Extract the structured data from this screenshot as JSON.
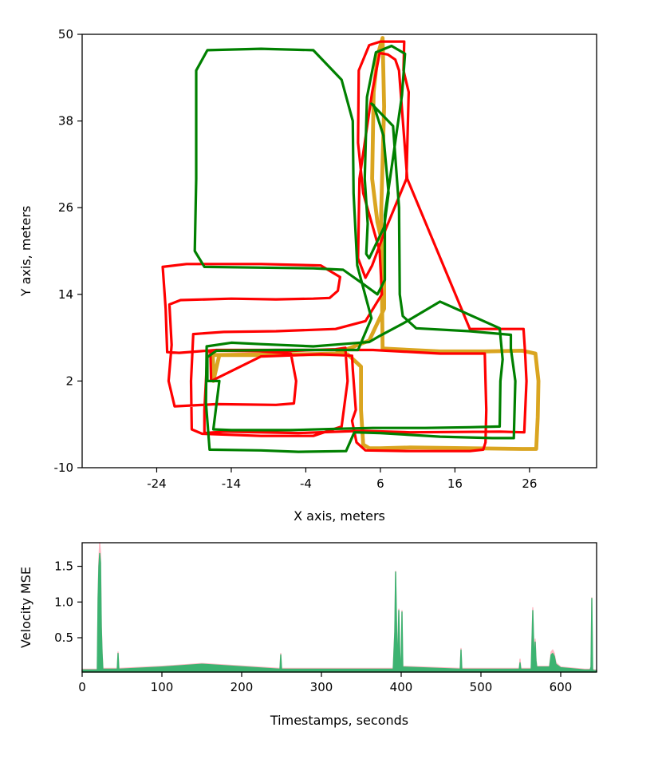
{
  "chart_data": [
    {
      "type": "line",
      "title": "",
      "xlabel": "X axis, meters",
      "ylabel": "Y axis, meters",
      "xlim": [
        -34,
        35
      ],
      "ylim": [
        -10,
        50
      ],
      "xticks": [
        "-24",
        "-14",
        "-4",
        "6",
        "16",
        "26"
      ],
      "yticks": [
        "-10",
        "2",
        "14",
        "26",
        "38",
        "50"
      ],
      "grid": false,
      "series": [
        {
          "color": "#daa520",
          "x": [
            -16.4,
            -16.4,
            -16.5,
            -16.6,
            -16.3,
            -14.8,
            -8,
            0,
            4.5,
            6.5,
            6.5,
            5.6,
            4.9,
            5.1,
            5.6,
            6.3,
            6.5,
            6.1,
            6.3,
            14,
            20,
            25,
            26.8,
            27.2,
            27.1,
            26.9,
            25,
            18,
            10,
            6,
            4.5,
            3.7,
            3.4,
            3.4,
            1.6,
            -8,
            -15.6,
            -16.4
          ],
          "y": [
            2,
            4,
            5.8,
            5.7,
            5.6,
            5.6,
            5.6,
            5.8,
            7.6,
            12,
            20,
            24,
            30,
            42,
            47,
            49.5,
            40,
            25,
            6.5,
            6.1,
            6.1,
            6.2,
            5.8,
            2,
            -3,
            -7.4,
            -7.4,
            -7.3,
            -7.2,
            -7.3,
            -7.3,
            -6.8,
            -2,
            4,
            5.7,
            5.7,
            5.6,
            2
          ]
        },
        {
          "color": "#ff0000",
          "x": [
            -16.7,
            -16.8,
            -16.2,
            -8,
            0,
            1.3,
            1.6,
            0.8,
            -3,
            -10,
            -17.9,
            -19.3,
            -19.4,
            -19.1,
            -15,
            -8,
            0,
            4,
            6.2,
            5.9,
            3.7,
            3,
            3.1,
            4.5,
            6,
            9.2,
            9.1,
            9.8,
            9.5,
            6.7,
            4.9,
            4,
            3,
            3.2,
            4.9,
            5.9,
            7,
            8,
            8.5,
            9.6,
            18,
            25.2,
            25.4,
            25.6,
            25.3,
            22,
            10,
            3.6,
            -5,
            -15,
            -17.6,
            -17.6,
            -17.4,
            -17.2,
            -14,
            -10,
            -6,
            -5.3,
            -5.6,
            -8,
            -16,
            -21.6,
            -22.4,
            -22,
            -22.3,
            -20.8,
            -14,
            -8,
            -3,
            -0.8,
            0.3,
            0.6,
            -2,
            -10,
            -20,
            -23.2,
            -22.8,
            -22.6,
            -21,
            -16,
            -8,
            -1,
            5,
            14,
            20,
            20.1,
            20.2,
            20.1,
            19.8,
            18,
            10,
            4,
            2.8,
            2.2,
            2.7,
            2.3,
            2.2,
            -2,
            -10,
            -16.7
          ],
          "y": [
            2,
            5.9,
            6.2,
            6.1,
            6.4,
            6.6,
            2,
            -4.3,
            -5.6,
            -5.6,
            -5.3,
            -4.7,
            2,
            8.5,
            8.8,
            8.9,
            9.2,
            10.3,
            14,
            20,
            28,
            35,
            45,
            48.5,
            49,
            49,
            45,
            42,
            30,
            23,
            18,
            16.3,
            19,
            30,
            42,
            47.4,
            47.2,
            46.5,
            45,
            30,
            9.2,
            9.2,
            6,
            2,
            -5.1,
            -5,
            -5.1,
            -4.9,
            -5.2,
            -5,
            -5.2,
            -2,
            2,
            6.1,
            6.3,
            6.1,
            5.8,
            2,
            -1.1,
            -1.3,
            -1.2,
            -1.5,
            2,
            7,
            12.6,
            13.2,
            13.4,
            13.3,
            13.4,
            13.5,
            14.5,
            16.4,
            18,
            18.2,
            18.2,
            17.8,
            12,
            6,
            5.9,
            6.3,
            6.3,
            6.3,
            6.3,
            5.8,
            5.8,
            2,
            -2,
            -6.5,
            -7.5,
            -7.7,
            -7.7,
            -7.6,
            -6.5,
            -3.5,
            -2,
            3.6,
            5.5,
            5.7,
            5.4,
            2
          ]
        },
        {
          "color": "#008000",
          "x": [
            -17.2,
            -17.2,
            -16,
            -8,
            -1,
            3,
            4.8,
            2.9,
            2.4,
            2.3,
            0.8,
            -3,
            -10,
            -17.2,
            -18.7,
            -18.7,
            -18.9,
            -17.6,
            -10,
            -3,
            1,
            3.6,
            5.6,
            6.6,
            6.6,
            8.9,
            9.3,
            7.5,
            5.4,
            4.2,
            3.9,
            4.3,
            4.1,
            4.5,
            6.5,
            7.1,
            6.4,
            5.1,
            4.8,
            7.7,
            8.5,
            8.6,
            9,
            10.8,
            18,
            23.5,
            23.5,
            24.1,
            23.9,
            21,
            14,
            6,
            2.5,
            1.4,
            -5,
            -10,
            -16.9,
            -17.4,
            -17.3,
            -14,
            -10,
            -3,
            2,
            4.5,
            6,
            9.1,
            14,
            22,
            22.4,
            22.1,
            22,
            18,
            12,
            5,
            1,
            -6,
            -14,
            -16.4,
            -15.6,
            -17.2
          ],
          "y": [
            2,
            5.3,
            6.2,
            6.3,
            6.3,
            6.3,
            10.7,
            18,
            28,
            38,
            43.7,
            47.8,
            48,
            47.8,
            45,
            30,
            20,
            17.8,
            17.7,
            17.6,
            17.4,
            15.5,
            14,
            16,
            25,
            41.6,
            47.3,
            48.4,
            47.5,
            41.3,
            30,
            23.8,
            19.6,
            19,
            23.3,
            28,
            36,
            40.2,
            40.4,
            37.3,
            26,
            14,
            11,
            9.3,
            8.9,
            8.4,
            6.5,
            2,
            -5.9,
            -5.9,
            -5.7,
            -5.2,
            -5.1,
            -7.7,
            -7.8,
            -7.6,
            -7.5,
            -1,
            6.8,
            7.3,
            7.1,
            6.8,
            7.2,
            7.4,
            8.3,
            10,
            13,
            9.3,
            5,
            2,
            -4.3,
            -4.4,
            -4.5,
            -4.5,
            -4.6,
            -4.8,
            -4.8,
            -4.7,
            2,
            2
          ]
        }
      ]
    },
    {
      "type": "area",
      "title": "",
      "xlabel": "Timestamps, seconds",
      "ylabel": "Velocity MSE",
      "xlim": [
        0,
        645
      ],
      "ylim": [
        0.02,
        1.83
      ],
      "xticks": [
        "0",
        "100",
        "200",
        "300",
        "400",
        "500",
        "600"
      ],
      "yticks": [
        "0.5",
        "1.0",
        "1.5"
      ],
      "grid": false,
      "series": [
        {
          "color": "#ffb6c1",
          "x": [
            0,
            19,
            20,
            21,
            22,
            23,
            24,
            25,
            26,
            44,
            45,
            46,
            100,
            150,
            248,
            249,
            250,
            390,
            392,
            393,
            394,
            395,
            396,
            397,
            398,
            399,
            400,
            401,
            402,
            474,
            475,
            476,
            548,
            549,
            550,
            563,
            564,
            565,
            566,
            567,
            568,
            569,
            570,
            586,
            588,
            590,
            592,
            594,
            600,
            630,
            637,
            638,
            639,
            640,
            641,
            645
          ],
          "y": [
            0.06,
            0.06,
            1.1,
            1.6,
            1.83,
            1.7,
            0.7,
            0.3,
            0.07,
            0.07,
            0.3,
            0.07,
            0.1,
            0.14,
            0.07,
            0.28,
            0.07,
            0.07,
            0.6,
            1.43,
            0.8,
            0.2,
            0.4,
            0.9,
            0.4,
            0.1,
            0.12,
            0.88,
            0.1,
            0.07,
            0.35,
            0.07,
            0.07,
            0.2,
            0.07,
            0.07,
            0.5,
            0.92,
            0.5,
            0.15,
            0.48,
            0.2,
            0.1,
            0.1,
            0.3,
            0.33,
            0.28,
            0.15,
            0.09,
            0.06,
            0.06,
            0.1,
            1.06,
            0.07,
            0.05,
            0.05
          ]
        },
        {
          "color": "#3cb371",
          "x": [
            0,
            19,
            20,
            21,
            22,
            23,
            24,
            25,
            26,
            44,
            45,
            46,
            100,
            150,
            248,
            249,
            250,
            390,
            392,
            393,
            394,
            395,
            396,
            397,
            398,
            399,
            400,
            401,
            402,
            474,
            475,
            476,
            548,
            549,
            550,
            563,
            564,
            565,
            566,
            567,
            568,
            569,
            570,
            586,
            588,
            590,
            592,
            594,
            600,
            630,
            637,
            638,
            639,
            640,
            641,
            645
          ],
          "y": [
            0.05,
            0.05,
            1.05,
            1.5,
            1.68,
            1.55,
            0.65,
            0.28,
            0.06,
            0.06,
            0.28,
            0.06,
            0.09,
            0.13,
            0.06,
            0.26,
            0.06,
            0.06,
            0.58,
            1.42,
            0.78,
            0.18,
            0.38,
            0.88,
            0.38,
            0.09,
            0.11,
            0.86,
            0.09,
            0.06,
            0.33,
            0.06,
            0.06,
            0.15,
            0.06,
            0.06,
            0.45,
            0.88,
            0.45,
            0.13,
            0.44,
            0.18,
            0.09,
            0.09,
            0.26,
            0.28,
            0.24,
            0.13,
            0.08,
            0.05,
            0.05,
            0.09,
            1.05,
            0.06,
            0.04,
            0.04
          ]
        }
      ]
    }
  ]
}
